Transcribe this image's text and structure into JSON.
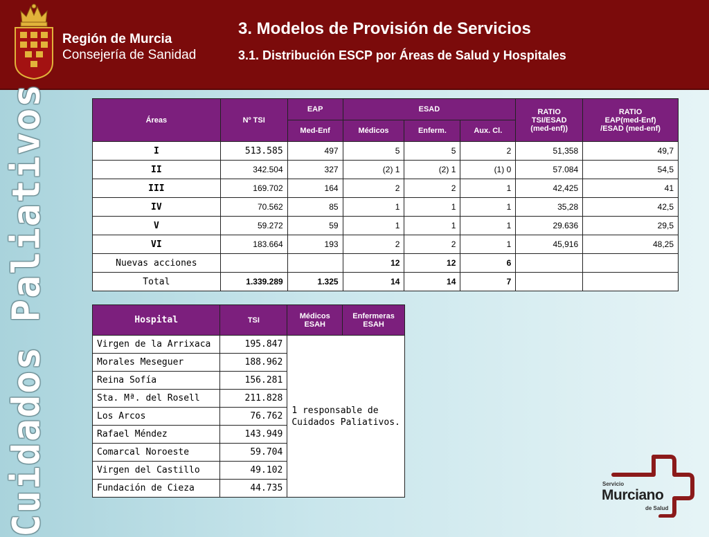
{
  "header": {
    "region_name": "Región de Murcia",
    "region_dept": "Consejería de Sanidad",
    "title": "3. Modelos de Provisión de Servicios",
    "subtitle": "3.1. Distribución ESCP por Áreas de Salud y Hospitales"
  },
  "vertical_title": "Cuidados Paliativos",
  "areas_table": {
    "headers": {
      "areas": "Áreas",
      "tsi": "Nº TSI",
      "eap": "EAP",
      "esad": "ESAD",
      "ratio1_l1": "RATIO",
      "ratio1_l2": "TSI/ESAD",
      "ratio1_l3": "(med-enf))",
      "ratio2_l1": "RATIO",
      "ratio2_l2": "EAP(med-Enf)",
      "ratio2_l3": "/ESAD (med-enf)",
      "med_enf": "Med-Enf",
      "medicos": "Médicos",
      "enferm": "Enferm.",
      "aux": "Aux. Cl."
    },
    "rows": [
      {
        "area": "I",
        "tsi": "513.585",
        "eap": "497",
        "med": "5",
        "enf": "5",
        "aux": "2",
        "r1": "51,358",
        "r2": "49,7"
      },
      {
        "area": "II",
        "tsi": "342.504",
        "eap": "327",
        "med": "(2) 1",
        "enf": "(2) 1",
        "aux": "(1) 0",
        "r1": "57.084",
        "r2": "54,5"
      },
      {
        "area": "III",
        "tsi": "169.702",
        "eap": "164",
        "med": "2",
        "enf": "2",
        "aux": "1",
        "r1": "42,425",
        "r2": "41"
      },
      {
        "area": "IV",
        "tsi": "70.562",
        "eap": "85",
        "med": "1",
        "enf": "1",
        "aux": "1",
        "r1": "35,28",
        "r2": "42,5"
      },
      {
        "area": "V",
        "tsi": "59.272",
        "eap": "59",
        "med": "1",
        "enf": "1",
        "aux": "1",
        "r1": "29.636",
        "r2": "29,5"
      },
      {
        "area": "VI",
        "tsi": "183.664",
        "eap": "193",
        "med": "2",
        "enf": "2",
        "aux": "1",
        "r1": "45,916",
        "r2": "48,25"
      }
    ],
    "nuevas": {
      "label": "Nuevas acciones",
      "med": "12",
      "enf": "12",
      "aux": "6"
    },
    "total": {
      "label": "Total",
      "tsi": "1.339.289",
      "eap": "1.325",
      "med": "14",
      "enf": "14",
      "aux": "7"
    }
  },
  "hospital_table": {
    "headers": {
      "hospital": "Hospital",
      "tsi": "TSI",
      "medicos_l1": "Médicos",
      "medicos_l2": "ESAH",
      "enfermeras_l1": "Enfermeras",
      "enfermeras_l2": "ESAH"
    },
    "rows": [
      {
        "name": "Virgen de la Arrixaca",
        "tsi": "195.847"
      },
      {
        "name": "Morales Meseguer",
        "tsi": "188.962"
      },
      {
        "name": "Reina Sofía",
        "tsi": "156.281"
      },
      {
        "name": "Sta. Mª. del Rosell",
        "tsi": "211.828"
      },
      {
        "name": "Los Arcos",
        "tsi": "76.762"
      },
      {
        "name": "Rafael Méndez",
        "tsi": "143.949"
      },
      {
        "name": "Comarcal Noroeste",
        "tsi": "59.704"
      },
      {
        "name": "Virgen del Castillo",
        "tsi": "49.102"
      },
      {
        "name": "Fundación de Cieza",
        "tsi": "44.735"
      }
    ],
    "merged_note_l1": "1 responsable de",
    "merged_note_l2": "Cuidados Paliativos."
  },
  "footer_logo": {
    "line1": "Servicio",
    "line2": "Murciano",
    "line3": "de Salud"
  },
  "colors": {
    "header_bg": "#7b0b0b",
    "table_header_bg": "#7c1f7d",
    "logo_red": "#8b1a1a"
  }
}
